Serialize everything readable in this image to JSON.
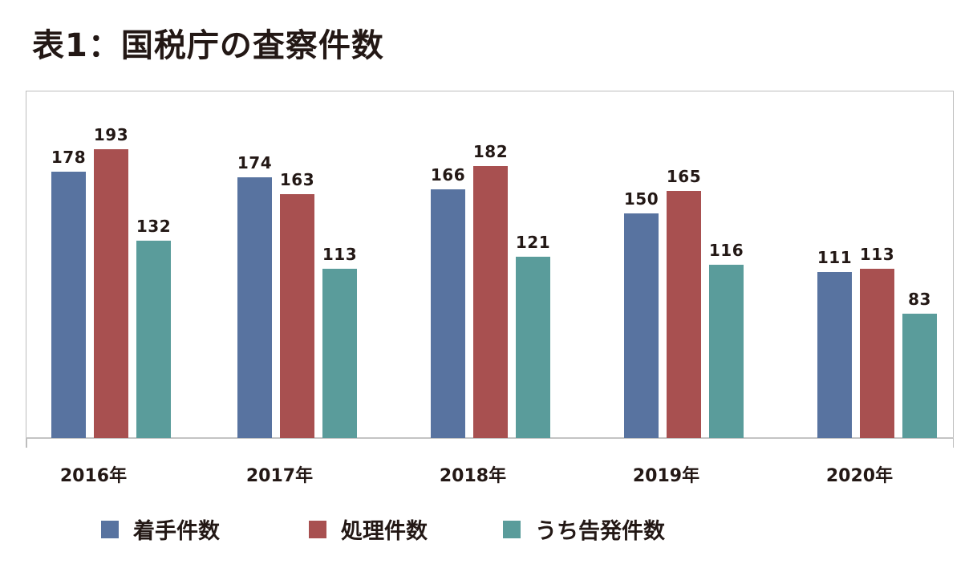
{
  "title": "表1：国税庁の査察件数",
  "chart_data": {
    "type": "bar",
    "title": "表1：国税庁の査察件数",
    "xlabel": "",
    "ylabel": "",
    "ylim": [
      0,
      232
    ],
    "grid": false,
    "legend_position": "bottom",
    "categories": [
      "2016年",
      "2017年",
      "2018年",
      "2019年",
      "2020年"
    ],
    "series": [
      {
        "name": "着手件数",
        "color": "#5873a0",
        "values": [
          178,
          174,
          166,
          150,
          111
        ]
      },
      {
        "name": "処理件数",
        "color": "#a85050",
        "values": [
          193,
          163,
          182,
          165,
          113
        ]
      },
      {
        "name": "うち告発件数",
        "color": "#5a9c9b",
        "values": [
          132,
          113,
          121,
          116,
          83
        ]
      }
    ]
  },
  "labels": {
    "g0": [
      "178",
      "193",
      "132"
    ],
    "g1": [
      "174",
      "163",
      "113"
    ],
    "g2": [
      "166",
      "182",
      "121"
    ],
    "g3": [
      "150",
      "165",
      "116"
    ],
    "g4": [
      "111",
      "113",
      "83"
    ]
  },
  "legend": [
    {
      "label": "着手件数",
      "color": "#5873a0"
    },
    {
      "label": "処理件数",
      "color": "#a85050"
    },
    {
      "label": "うち告発件数",
      "color": "#5a9c9b"
    }
  ]
}
